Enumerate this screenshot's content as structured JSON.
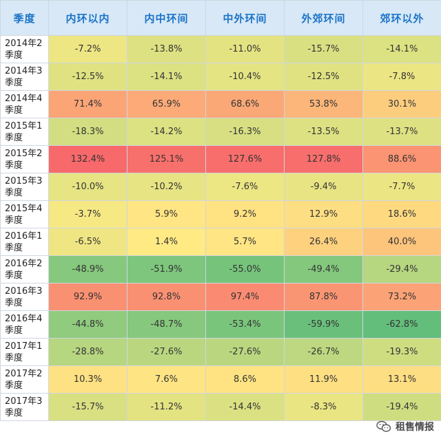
{
  "chart_data": {
    "type": "heatmap",
    "corner_label": "季度",
    "columns": [
      "内环以内",
      "内中环间",
      "中外环间",
      "外郊环间",
      "郊环以外"
    ],
    "rows": [
      {
        "label_line1": "2014年2",
        "label_line2": "季度",
        "values": [
          -7.2,
          -13.8,
          -11.0,
          -15.7,
          -14.1
        ]
      },
      {
        "label_line1": "2014年3",
        "label_line2": "季度",
        "values": [
          -12.5,
          -14.1,
          -10.4,
          -12.5,
          -7.8
        ]
      },
      {
        "label_line1": "2014年4",
        "label_line2": "季度",
        "values": [
          71.4,
          65.9,
          68.6,
          53.8,
          30.1
        ]
      },
      {
        "label_line1": "2015年1",
        "label_line2": "季度",
        "values": [
          -18.3,
          -14.2,
          -16.3,
          -13.5,
          -13.7
        ]
      },
      {
        "label_line1": "2015年2",
        "label_line2": "季度",
        "values": [
          132.4,
          125.1,
          127.6,
          127.8,
          88.6
        ]
      },
      {
        "label_line1": "2015年3",
        "label_line2": "季度",
        "values": [
          -10.0,
          -10.2,
          -7.6,
          -9.4,
          -7.7
        ]
      },
      {
        "label_line1": "2015年4",
        "label_line2": "季度",
        "values": [
          -3.7,
          5.9,
          9.2,
          12.9,
          18.6
        ]
      },
      {
        "label_line1": "2016年1",
        "label_line2": "季度",
        "values": [
          -6.5,
          1.4,
          5.7,
          26.4,
          40.0
        ]
      },
      {
        "label_line1": "2016年2",
        "label_line2": "季度",
        "values": [
          -48.9,
          -51.9,
          -55.0,
          -49.4,
          -29.4
        ]
      },
      {
        "label_line1": "2016年3",
        "label_line2": "季度",
        "values": [
          92.9,
          92.8,
          97.4,
          87.8,
          73.2
        ]
      },
      {
        "label_line1": "2016年4",
        "label_line2": "季度",
        "values": [
          -44.8,
          -48.7,
          -53.4,
          -59.9,
          -62.8
        ]
      },
      {
        "label_line1": "2017年1",
        "label_line2": "季度",
        "values": [
          -28.8,
          -27.6,
          -27.6,
          -26.7,
          -19.3
        ]
      },
      {
        "label_line1": "2017年2",
        "label_line2": "季度",
        "values": [
          10.3,
          7.6,
          8.6,
          11.9,
          13.1
        ]
      },
      {
        "label_line1": "2017年3",
        "label_line2": "季度",
        "values": [
          -15.7,
          -11.2,
          -14.4,
          -8.3,
          -19.4
        ]
      }
    ],
    "value_suffix": "%",
    "colors": {
      "low": "#63be7b",
      "mid": "#ffeb84",
      "high": "#f8696b"
    }
  },
  "watermark": {
    "text": "租售情报",
    "icon": "wechat-icon"
  }
}
